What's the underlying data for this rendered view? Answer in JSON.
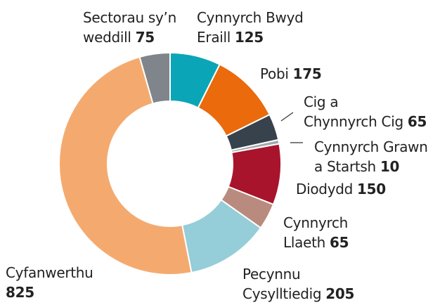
{
  "chart_data": {
    "type": "donut",
    "categories": [
      "Cynnyrch Bwyd Eraill",
      "Pobi",
      "Cig a Chynnyrch Cig",
      "Cynnyrch Grawn a Startsh",
      "Diodydd",
      "Cynnyrch Llaeth",
      "Pecynnu Cysylltiedig",
      "Cyfanwerthu",
      "Sectorau sy’n weddill"
    ],
    "values": [
      125,
      175,
      65,
      10,
      150,
      65,
      205,
      825,
      75
    ],
    "colors": [
      "#0aa6b7",
      "#ea6a0c",
      "#38424d",
      "#a3a8ad",
      "#a8142c",
      "#b98b7f",
      "#95cdd8",
      "#f4aa6e",
      "#7f858b"
    ]
  }
}
